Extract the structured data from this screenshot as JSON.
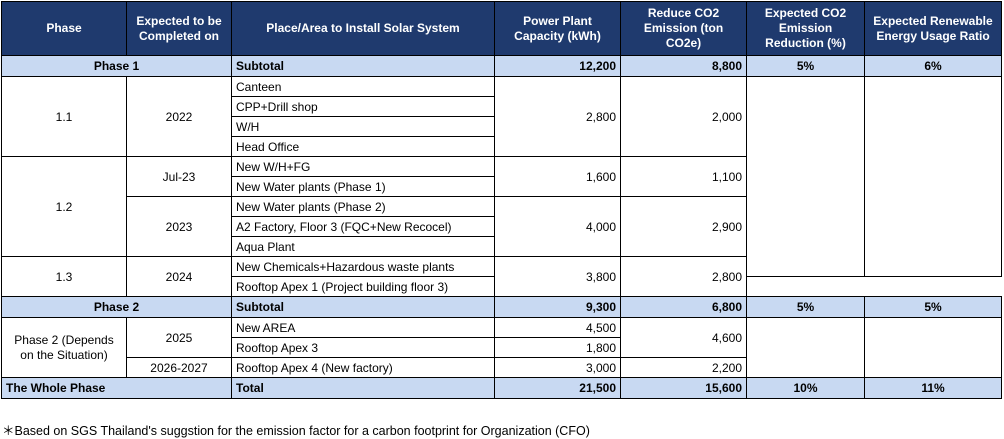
{
  "headers": {
    "phase": "Phase",
    "expected": "Expected to be Completed on",
    "place": "Place/Area to Install Solar System",
    "capacity": "Power Plant Capacity (kWh)",
    "reduce": "Reduce CO2 Emission (ton CO2e)",
    "expected_reduction": "Expected CO2 Emission Reduction (%)",
    "renewable_ratio": "Expected Renewable Energy Usage Ratio"
  },
  "phase1": {
    "label": "Phase 1",
    "subtotal_label": "Subtotal",
    "capacity": "12,200",
    "reduce": "8,800",
    "reduction_pct": "5%",
    "renewable_pct": "6%",
    "g11": {
      "phase": "1.1",
      "year": "2022",
      "places": [
        "Canteen",
        "CPP+Drill shop",
        "W/H",
        "Head Office"
      ],
      "capacity": "2,800",
      "reduce": "2,000"
    },
    "g12": {
      "phase": "1.2",
      "a": {
        "year": "Jul-23",
        "places": [
          "New W/H+FG",
          "New Water plants (Phase 1)"
        ],
        "capacity": "1,600",
        "reduce": "1,100"
      },
      "b": {
        "year": "2023",
        "places": [
          "New Water plants (Phase 2)",
          "A2 Factory, Floor 3 (FQC+New Recocel)",
          "Aqua Plant"
        ],
        "capacity": "4,000",
        "reduce": "2,900"
      }
    },
    "g13": {
      "phase": "1.3",
      "year": "2024",
      "places": [
        "New Chemicals+Hazardous  waste plants",
        "Rooftop Apex 1 (Project building floor 3)"
      ],
      "capacity": "3,800",
      "reduce": "2,800"
    }
  },
  "phase2": {
    "label": "Phase 2",
    "subtotal_label": "Subtotal",
    "capacity": "9,300",
    "reduce": "6,800",
    "reduction_pct": "5%",
    "renewable_pct": "5%",
    "group_label": "Phase 2 (Depends on the Situation)",
    "a": {
      "year": "2025",
      "places": [
        "New AREA",
        "Rooftop Apex 3"
      ],
      "capacities": [
        "4,500",
        "1,800"
      ],
      "reduce": "4,600"
    },
    "b": {
      "year": "2026-2027",
      "place": "Rooftop Apex 4 (New factory)",
      "capacity": "3,000",
      "reduce": "2,200"
    }
  },
  "whole": {
    "label": "The Whole Phase",
    "total_label": "Total",
    "capacity": "21,500",
    "reduce": "15,600",
    "reduction_pct": "10%",
    "renewable_pct": "11%"
  },
  "footnote": "＊Based on SGS Thailand's suggstion for the emission factor for a carbon footprint for Organization (CFO)"
}
